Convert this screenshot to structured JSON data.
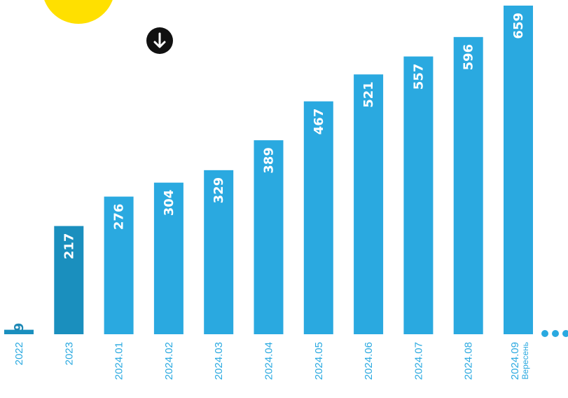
{
  "header": {
    "partial_text": "                    "
  },
  "icons": {
    "sun": "yellow-circle-icon",
    "down_arrow": "arrow-down-icon",
    "more": "more-dots-icon",
    "down_arrow_glyph": "↓"
  },
  "colors": {
    "bar": "#2aa9e0",
    "bar_dark": "#1a8fbe",
    "label_color": "#2aa9e0",
    "sun": "#ffe000",
    "arrow_circle": "#111111"
  },
  "chart_data": {
    "type": "bar",
    "categories": [
      "2022",
      "2023",
      "2024.01",
      "2024.02",
      "2024.03",
      "2024.04",
      "2024.05",
      "2024.06",
      "2024.07",
      "2024.08",
      "2024.09"
    ],
    "category_sublabels": [
      "",
      "",
      "",
      "",
      "",
      "",
      "",
      "",
      "",
      "",
      "Вересень"
    ],
    "values": [
      9,
      217,
      276,
      304,
      329,
      389,
      467,
      521,
      557,
      596,
      659
    ],
    "value_labels": [
      "9",
      "217",
      "276",
      "304",
      "329",
      "389",
      "467",
      "521",
      "557",
      "596",
      "659"
    ],
    "highlight_indices": [
      0,
      1
    ],
    "title": "",
    "xlabel": "",
    "ylabel": "",
    "ylim": [
      0,
      659
    ],
    "grid": false,
    "legend": "none"
  }
}
